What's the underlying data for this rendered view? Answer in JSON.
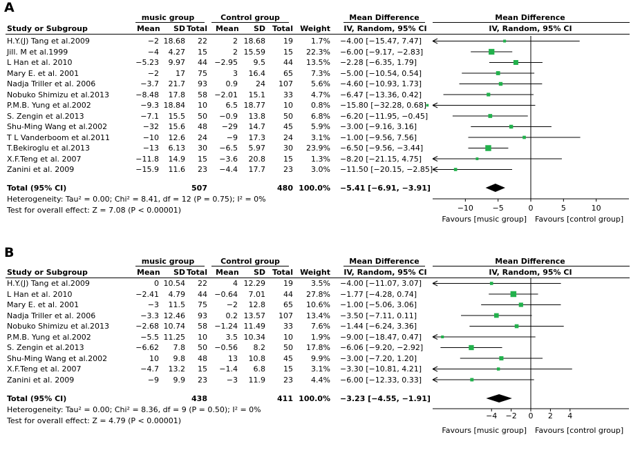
{
  "chart_data": [
    {
      "type": "forest",
      "panel_label": "A",
      "headers": {
        "study": "Study or Subgroup",
        "group1": "music group",
        "group2": "Control group",
        "mean": "Mean",
        "sd": "SD",
        "total": "Total",
        "weight": "Weight",
        "md": "Mean Difference",
        "md_sub": "IV, Random, 95% CI"
      },
      "studies": [
        {
          "name": "H.Y.(J) Tang et al.2009",
          "m1": "−2",
          "sd1": "18.68",
          "n1": "22",
          "m2": "2",
          "sd2": "18.68",
          "n2": "19",
          "weight": "1.7%",
          "ci_text": "−4.00 [−15.47, 7.47]",
          "md": -4.0,
          "lo": -15.47,
          "hi": 7.47
        },
        {
          "name": "Jill. M et al.1999",
          "m1": "−4",
          "sd1": "4.27",
          "n1": "15",
          "m2": "2",
          "sd2": "15.59",
          "n2": "15",
          "weight": "22.3%",
          "ci_text": "−6.00 [−9.17, −2.83]",
          "md": -6.0,
          "lo": -9.17,
          "hi": -2.83
        },
        {
          "name": "L Han et al. 2010",
          "m1": "−5.23",
          "sd1": "9.97",
          "n1": "44",
          "m2": "−2.95",
          "sd2": "9.5",
          "n2": "44",
          "weight": "13.5%",
          "ci_text": "−2.28 [−6.35, 1.79]",
          "md": -2.28,
          "lo": -6.35,
          "hi": 1.79
        },
        {
          "name": "Mary E. et al. 2001",
          "m1": "−2",
          "sd1": "17",
          "n1": "75",
          "m2": "3",
          "sd2": "16.4",
          "n2": "65",
          "weight": "7.3%",
          "ci_text": "−5.00 [−10.54, 0.54]",
          "md": -5.0,
          "lo": -10.54,
          "hi": 0.54
        },
        {
          "name": "Nadja Triller et al. 2006",
          "m1": "−3.7",
          "sd1": "21.7",
          "n1": "93",
          "m2": "0.9",
          "sd2": "24",
          "n2": "107",
          "weight": "5.6%",
          "ci_text": "−4.60 [−10.93, 1.73]",
          "md": -4.6,
          "lo": -10.93,
          "hi": 1.73
        },
        {
          "name": "Nobuko Shimizu et al.2013",
          "m1": "−8.48",
          "sd1": "17.8",
          "n1": "58",
          "m2": "−2.01",
          "sd2": "15.1",
          "n2": "33",
          "weight": "4.7%",
          "ci_text": "−6.47 [−13.36, 0.42]",
          "md": -6.47,
          "lo": -13.36,
          "hi": 0.42
        },
        {
          "name": "P.M.B. Yung et al.2002",
          "m1": "−9.3",
          "sd1": "18.84",
          "n1": "10",
          "m2": "6.5",
          "sd2": "18.77",
          "n2": "10",
          "weight": "0.8%",
          "ci_text": "−15.80 [−32.28, 0.68]",
          "md": -15.8,
          "lo": -32.28,
          "hi": 0.68
        },
        {
          "name": "S. Zengin et al.2013",
          "m1": "−7.1",
          "sd1": "15.5",
          "n1": "50",
          "m2": "−0.9",
          "sd2": "13.8",
          "n2": "50",
          "weight": "6.8%",
          "ci_text": "−6.20 [−11.95, −0.45]",
          "md": -6.2,
          "lo": -11.95,
          "hi": -0.45
        },
        {
          "name": "Shu-Ming Wang et al.2002",
          "m1": "−32",
          "sd1": "15.6",
          "n1": "48",
          "m2": "−29",
          "sd2": "14.7",
          "n2": "45",
          "weight": "5.9%",
          "ci_text": "−3.00 [−9.16, 3.16]",
          "md": -3.0,
          "lo": -9.16,
          "hi": 3.16
        },
        {
          "name": "T L Vanderboom et al.2011",
          "m1": "−10",
          "sd1": "12.6",
          "n1": "24",
          "m2": "−9",
          "sd2": "17.3",
          "n2": "24",
          "weight": "3.1%",
          "ci_text": "−1.00 [−9.56, 7.56]",
          "md": -1.0,
          "lo": -9.56,
          "hi": 7.56
        },
        {
          "name": "T.Bekiroglu et al.2013",
          "m1": "−13",
          "sd1": "6.13",
          "n1": "30",
          "m2": "−6.5",
          "sd2": "5.97",
          "n2": "30",
          "weight": "23.9%",
          "ci_text": "−6.50 [−9.56, −3.44]",
          "md": -6.5,
          "lo": -9.56,
          "hi": -3.44
        },
        {
          "name": "X.F.Teng et al. 2007",
          "m1": "−11.8",
          "sd1": "14.9",
          "n1": "15",
          "m2": "−3.6",
          "sd2": "20.8",
          "n2": "15",
          "weight": "1.3%",
          "ci_text": "−8.20 [−21.15, 4.75]",
          "md": -8.2,
          "lo": -21.15,
          "hi": 4.75
        },
        {
          "name": "Zanini et al. 2009",
          "m1": "−15.9",
          "sd1": "11.6",
          "n1": "23",
          "m2": "−4.4",
          "sd2": "17.7",
          "n2": "23",
          "weight": "3.0%",
          "ci_text": "−11.50 [−20.15, −2.85]",
          "md": -11.5,
          "lo": -20.15,
          "hi": -2.85
        }
      ],
      "total": {
        "label": "Total (95% CI)",
        "n1": "507",
        "n2": "480",
        "weight": "100.0%",
        "ci_text": "−5.41 [−6.91, −3.91]",
        "md": -5.41,
        "lo": -6.91,
        "hi": -3.91
      },
      "heterogeneity": "Heterogeneity: Tau² = 0.00; Chi² = 8.41, df = 12 (P = 0.75); I² = 0%",
      "overall_effect": "Test for overall effect: Z = 7.08 (P < 0.00001)",
      "xlim": [
        -15,
        15
      ],
      "ticks": [
        -10,
        -5,
        0,
        5,
        10
      ],
      "tick_labels": [
        "−10",
        "−5",
        "0",
        "5",
        "10"
      ],
      "favours_left": "Favours [music group]",
      "favours_right": "Favours [control group]",
      "marker_color": "#22b14c"
    },
    {
      "type": "forest",
      "panel_label": "B",
      "headers": {
        "study": "Study or Subgroup",
        "group1": "music group",
        "group2": "Control group",
        "mean": "Mean",
        "sd": "SD",
        "total": "Total",
        "weight": "Weight",
        "md": "Mean Difference",
        "md_sub": "IV, Random, 95% CI"
      },
      "studies": [
        {
          "name": "H.Y.(J) Tang et al.2009",
          "m1": "0",
          "sd1": "10.54",
          "n1": "22",
          "m2": "4",
          "sd2": "12.29",
          "n2": "19",
          "weight": "3.5%",
          "ci_text": "−4.00 [−11.07, 3.07]",
          "md": -4.0,
          "lo": -11.07,
          "hi": 3.07
        },
        {
          "name": "L Han et al. 2010",
          "m1": "−2.41",
          "sd1": "4.79",
          "n1": "44",
          "m2": "−0.64",
          "sd2": "7.01",
          "n2": "44",
          "weight": "27.8%",
          "ci_text": "−1.77 [−4.28, 0.74]",
          "md": -1.77,
          "lo": -4.28,
          "hi": 0.74
        },
        {
          "name": "Mary E. et al. 2001",
          "m1": "−3",
          "sd1": "11.5",
          "n1": "75",
          "m2": "−2",
          "sd2": "12.8",
          "n2": "65",
          "weight": "10.6%",
          "ci_text": "−1.00 [−5.06, 3.06]",
          "md": -1.0,
          "lo": -5.06,
          "hi": 3.06
        },
        {
          "name": "Nadja Triller et al. 2006",
          "m1": "−3.3",
          "sd1": "12.46",
          "n1": "93",
          "m2": "0.2",
          "sd2": "13.57",
          "n2": "107",
          "weight": "13.4%",
          "ci_text": "−3.50 [−7.11, 0.11]",
          "md": -3.5,
          "lo": -7.11,
          "hi": 0.11
        },
        {
          "name": "Nobuko Shimizu et al.2013",
          "m1": "−2.68",
          "sd1": "10.74",
          "n1": "58",
          "m2": "−1.24",
          "sd2": "11.49",
          "n2": "33",
          "weight": "7.6%",
          "ci_text": "−1.44 [−6.24, 3.36]",
          "md": -1.44,
          "lo": -6.24,
          "hi": 3.36
        },
        {
          "name": "P.M.B. Yung et al.2002",
          "m1": "−5.5",
          "sd1": "11.25",
          "n1": "10",
          "m2": "3.5",
          "sd2": "10.34",
          "n2": "10",
          "weight": "1.9%",
          "ci_text": "−9.00 [−18.47, 0.47]",
          "md": -9.0,
          "lo": -18.47,
          "hi": 0.47
        },
        {
          "name": "S. Zengin et al.2013",
          "m1": "−6.62",
          "sd1": "7.8",
          "n1": "50",
          "m2": "−0.56",
          "sd2": "8.2",
          "n2": "50",
          "weight": "17.8%",
          "ci_text": "−6.06 [−9.20, −2.92]",
          "md": -6.06,
          "lo": -9.2,
          "hi": -2.92
        },
        {
          "name": "Shu-Ming Wang et al.2002",
          "m1": "10",
          "sd1": "9.8",
          "n1": "48",
          "m2": "13",
          "sd2": "10.8",
          "n2": "45",
          "weight": "9.9%",
          "ci_text": "−3.00 [−7.20, 1.20]",
          "md": -3.0,
          "lo": -7.2,
          "hi": 1.2
        },
        {
          "name": "X.F.Teng et al. 2007",
          "m1": "−4.7",
          "sd1": "13.2",
          "n1": "15",
          "m2": "−1.4",
          "sd2": "6.8",
          "n2": "15",
          "weight": "3.1%",
          "ci_text": "−3.30 [−10.81, 4.21]",
          "md": -3.3,
          "lo": -10.81,
          "hi": 4.21
        },
        {
          "name": "Zanini et al. 2009",
          "m1": "−9",
          "sd1": "9.9",
          "n1": "23",
          "m2": "−3",
          "sd2": "11.9",
          "n2": "23",
          "weight": "4.4%",
          "ci_text": "−6.00 [−12.33, 0.33]",
          "md": -6.0,
          "lo": -12.33,
          "hi": 0.33
        }
      ],
      "total": {
        "label": "Total (95% CI)",
        "n1": "438",
        "n2": "411",
        "weight": "100.0%",
        "ci_text": "−3.23 [−4.55, −1.91]",
        "md": -3.23,
        "lo": -4.55,
        "hi": -1.91
      },
      "heterogeneity": "Heterogeneity: Tau² = 0.00; Chi² = 8.36, df = 9 (P = 0.50); I² = 0%",
      "overall_effect": "Test for overall effect: Z = 4.79 (P < 0.00001)",
      "xlim": [
        -10,
        10
      ],
      "ticks": [
        -4,
        -2,
        0,
        2,
        4
      ],
      "tick_labels": [
        "−4",
        "−2",
        "0",
        "2",
        "4"
      ],
      "favours_left": "Favours [music group]",
      "favours_right": "Favours [control group]",
      "marker_color": "#22b14c"
    }
  ]
}
